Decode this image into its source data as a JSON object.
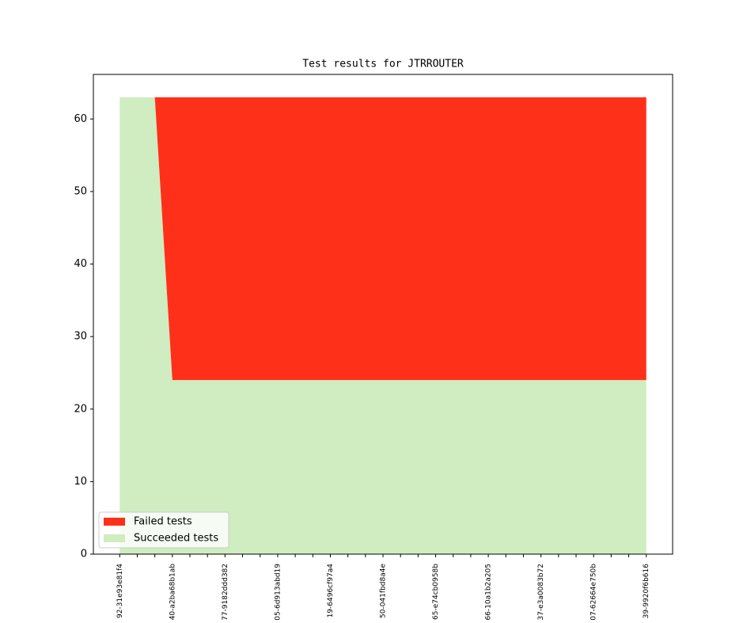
{
  "chart_data": {
    "type": "stacked-area",
    "title": "Test results for JTRROUTER",
    "categories": [
      "92-31e93e81f4",
      null,
      null,
      "40-a2ba68b1ab",
      null,
      null,
      "77-9182ddd382",
      null,
      null,
      "05-6d913abd19",
      null,
      null,
      "19-6496cf97a4",
      null,
      null,
      "50-041fbd8a4e",
      null,
      null,
      "65-e74cb0958b",
      null,
      null,
      "66-10a1b2a205",
      null,
      null,
      "37-e3a0083b72",
      null,
      null,
      "07-62664e750b",
      null,
      null,
      "39-9920f6b616"
    ],
    "series": [
      {
        "name": "Succeeded tests",
        "color": "#cfedc0",
        "values": [
          63,
          63,
          63,
          24,
          24,
          24,
          24,
          24,
          24,
          24,
          24,
          24,
          24,
          24,
          24,
          24,
          24,
          24,
          24,
          24,
          24,
          24,
          24,
          24,
          24,
          24,
          24,
          24,
          24,
          24,
          24
        ]
      },
      {
        "name": "Failed tests",
        "color": "#ff3019",
        "values": [
          0,
          0,
          0,
          39,
          39,
          39,
          39,
          39,
          39,
          39,
          39,
          39,
          39,
          39,
          39,
          39,
          39,
          39,
          39,
          39,
          39,
          39,
          39,
          39,
          39,
          39,
          39,
          39,
          39,
          39,
          39
        ]
      }
    ],
    "xlim": [
      -1.5,
      31.5
    ],
    "ylim": [
      0,
      66.15
    ],
    "yticks": [
      0,
      10,
      20,
      30,
      40,
      50,
      60
    ],
    "legend": "lower left"
  }
}
